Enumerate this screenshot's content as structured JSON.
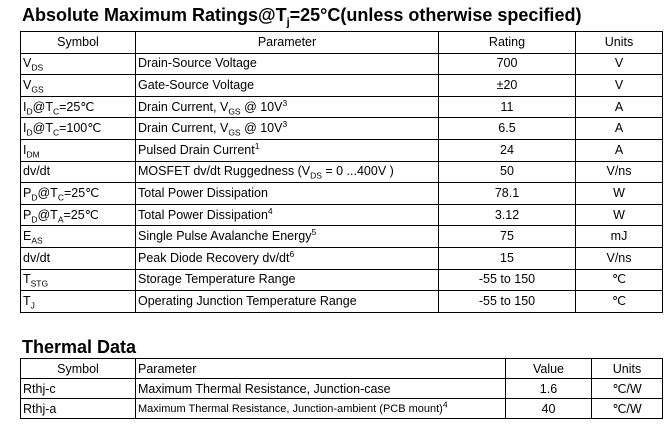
{
  "abs_max": {
    "title_prefix": "Absolute Maximum Ratings@T",
    "title_sub": "j",
    "title_suffix": "=25°C(unless otherwise specified)",
    "headers": {
      "symbol": "Symbol",
      "parameter": "Parameter",
      "rating": "Rating",
      "units": "Units"
    },
    "rows": [
      {
        "sym_base": "V",
        "sym_sub": "DS",
        "sym_tail": "",
        "sym_sub2": "",
        "sym_tail2": "",
        "param_pre": "Drain-Source Voltage",
        "param_sub": "",
        "param_mid": "",
        "param_sup": "",
        "rating": "700",
        "units": "V"
      },
      {
        "sym_base": "V",
        "sym_sub": "GS",
        "sym_tail": "",
        "sym_sub2": "",
        "sym_tail2": "",
        "param_pre": "Gate-Source Voltage",
        "param_sub": "",
        "param_mid": "",
        "param_sup": "",
        "rating": "±20",
        "units": "V"
      },
      {
        "sym_base": "I",
        "sym_sub": "D",
        "sym_tail": "@T",
        "sym_sub2": "C",
        "sym_tail2": "=25℃",
        "param_pre": "Drain Current, V",
        "param_sub": "GS",
        "param_mid": " @ 10V",
        "param_sup": "3",
        "rating": "11",
        "units": "A"
      },
      {
        "sym_base": "I",
        "sym_sub": "D",
        "sym_tail": "@T",
        "sym_sub2": "C",
        "sym_tail2": "=100℃",
        "param_pre": "Drain Current, V",
        "param_sub": "GS",
        "param_mid": " @ 10V",
        "param_sup": "3",
        "rating": "6.5",
        "units": "A"
      },
      {
        "sym_base": "I",
        "sym_sub": "DM",
        "sym_tail": "",
        "sym_sub2": "",
        "sym_tail2": "",
        "param_pre": "Pulsed Drain Current",
        "param_sub": "",
        "param_mid": "",
        "param_sup": "1",
        "rating": "24",
        "units": "A"
      },
      {
        "sym_base": "dv/dt",
        "sym_sub": "",
        "sym_tail": "",
        "sym_sub2": "",
        "sym_tail2": "",
        "param_pre": "MOSFET dv/dt Ruggedness (V",
        "param_sub": "DS",
        "param_mid": " = 0 ...400V )",
        "param_sup": "",
        "rating": "50",
        "units": "V/ns"
      },
      {
        "sym_base": "P",
        "sym_sub": "D",
        "sym_tail": "@T",
        "sym_sub2": "C",
        "sym_tail2": "=25℃",
        "param_pre": "Total Power Dissipation",
        "param_sub": "",
        "param_mid": "",
        "param_sup": "",
        "rating": "78.1",
        "units": "W"
      },
      {
        "sym_base": "P",
        "sym_sub": "D",
        "sym_tail": "@T",
        "sym_sub2": "A",
        "sym_tail2": "=25℃",
        "param_pre": "Total Power Dissipation",
        "param_sub": "",
        "param_mid": "",
        "param_sup": "4",
        "rating": "3.12",
        "units": "W"
      },
      {
        "sym_base": "E",
        "sym_sub": "AS",
        "sym_tail": "",
        "sym_sub2": "",
        "sym_tail2": "",
        "param_pre": "Single Pulse Avalanche Energy",
        "param_sub": "",
        "param_mid": "",
        "param_sup": "5",
        "rating": "75",
        "units": "mJ"
      },
      {
        "sym_base": "dv/dt",
        "sym_sub": "",
        "sym_tail": "",
        "sym_sub2": "",
        "sym_tail2": "",
        "param_pre": "Peak Diode Recovery dv/dt",
        "param_sub": "",
        "param_mid": "",
        "param_sup": "6",
        "rating": "15",
        "units": "V/ns"
      },
      {
        "sym_base": "T",
        "sym_sub": "STG",
        "sym_tail": "",
        "sym_sub2": "",
        "sym_tail2": "",
        "param_pre": "Storage Temperature Range",
        "param_sub": "",
        "param_mid": "",
        "param_sup": "",
        "rating": "-55 to 150",
        "units": "℃"
      },
      {
        "sym_base": "T",
        "sym_sub": "J",
        "sym_tail": "",
        "sym_sub2": "",
        "sym_tail2": "",
        "param_pre": "Operating Junction Temperature Range",
        "param_sub": "",
        "param_mid": "",
        "param_sup": "",
        "rating": "-55 to 150",
        "units": "℃"
      }
    ]
  },
  "thermal": {
    "title": "Thermal Data",
    "headers": {
      "symbol": "Symbol",
      "parameter": "Parameter",
      "value": "Value",
      "units": "Units"
    },
    "rows": [
      {
        "symbol": "Rthj-c",
        "param_pre": "Maximum Thermal Resistance, Junction-case",
        "param_sup": "",
        "value": "1.6",
        "units": "℃/W",
        "small": false
      },
      {
        "symbol": "Rthj-a",
        "param_pre": "Maximum Thermal Resistance, Junction-ambient (PCB mount)",
        "param_sup": "4",
        "value": "40",
        "units": "℃/W",
        "small": true
      }
    ]
  }
}
